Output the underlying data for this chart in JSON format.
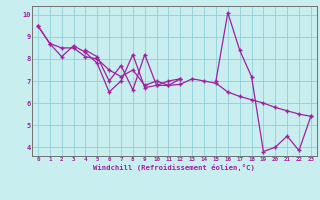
{
  "xlabel": "Windchill (Refroidissement éolien,°C)",
  "line_color": "#a020a0",
  "bg_color": "#c8eef0",
  "grid_color": "#90d0d8",
  "spine_color": "#707070",
  "marker": "+",
  "xlim": [
    -0.5,
    23.5
  ],
  "ylim": [
    3.6,
    10.4
  ],
  "yticks": [
    4,
    5,
    6,
    7,
    8,
    9,
    10
  ],
  "xticks": [
    0,
    1,
    2,
    3,
    4,
    5,
    6,
    7,
    8,
    9,
    10,
    11,
    12,
    13,
    14,
    15,
    16,
    17,
    18,
    19,
    20,
    21,
    22,
    23
  ],
  "series": [
    {
      "x": [
        0,
        1,
        2,
        3,
        4,
        5,
        6,
        7,
        8,
        9,
        10,
        11,
        12
      ],
      "y": [
        9.5,
        8.7,
        8.1,
        8.6,
        8.3,
        7.8,
        6.5,
        7.0,
        8.2,
        6.7,
        6.8,
        6.8,
        7.1
      ]
    },
    {
      "x": [
        4,
        5,
        6,
        7,
        8,
        9,
        10,
        11,
        12
      ],
      "y": [
        8.4,
        8.1,
        7.0,
        7.7,
        6.6,
        8.2,
        6.8,
        7.0,
        7.1
      ]
    },
    {
      "x": [
        0,
        1,
        2,
        3,
        4,
        5,
        6,
        7,
        8,
        9,
        10,
        11,
        12,
        13,
        14,
        15,
        16,
        17,
        18,
        19,
        20,
        21,
        22,
        23
      ],
      "y": [
        9.5,
        8.7,
        8.5,
        8.5,
        8.1,
        8.0,
        7.5,
        7.2,
        7.5,
        6.8,
        7.0,
        6.8,
        6.85,
        7.1,
        7.0,
        6.9,
        6.5,
        6.3,
        6.15,
        6.0,
        5.8,
        5.65,
        5.5,
        5.4
      ]
    },
    {
      "x": [
        15,
        16,
        17,
        18,
        19,
        20,
        21,
        22,
        23
      ],
      "y": [
        7.0,
        10.1,
        8.4,
        7.2,
        3.8,
        4.0,
        4.5,
        3.85,
        5.4
      ]
    }
  ]
}
